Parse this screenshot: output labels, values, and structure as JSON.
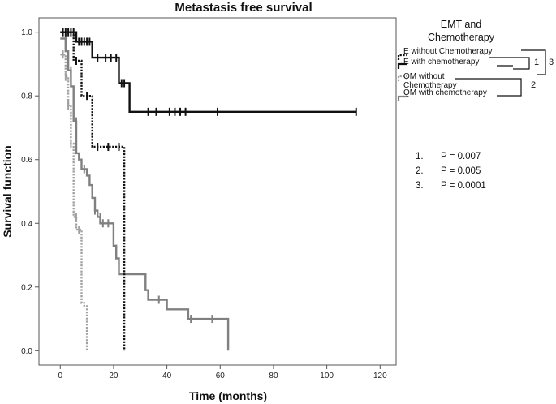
{
  "chart_data": {
    "type": "line",
    "subtype": "kaplan-meier",
    "title": "Metastasis free survival",
    "xlabel": "Time (months)",
    "ylabel": "Survival function",
    "xlim": [
      -8,
      126
    ],
    "ylim": [
      -0.045,
      1.045
    ],
    "xticks": [
      0,
      20,
      40,
      60,
      80,
      100,
      120
    ],
    "yticks": [
      0.0,
      0.2,
      0.4,
      0.6,
      0.8,
      1.0
    ],
    "ytick_labels": [
      "0.0",
      "0.2",
      "0.4",
      "0.6",
      "0.8",
      "1.0"
    ],
    "grid": false,
    "legend": {
      "title": "EMT and Chemotherapy",
      "title_lines": [
        "EMT and",
        "Chemotherapy"
      ],
      "placement": "outside-right"
    },
    "series": [
      {
        "name": "E without Chemotherapy",
        "label_lines": [
          "E without Chemotherapy"
        ],
        "color": "#111111",
        "style": "dotted",
        "steps": [
          [
            0,
            1.0
          ],
          [
            5,
            1.0
          ],
          [
            5,
            0.91
          ],
          [
            8,
            0.91
          ],
          [
            8,
            0.8
          ],
          [
            12,
            0.8
          ],
          [
            12,
            0.64
          ],
          [
            24,
            0.64
          ],
          [
            24,
            0.0
          ]
        ],
        "censored": [
          [
            2,
            1.0
          ],
          [
            4,
            1.0
          ],
          [
            6,
            0.91
          ],
          [
            10,
            0.8
          ],
          [
            14,
            0.64
          ],
          [
            18,
            0.64
          ],
          [
            22,
            0.64
          ]
        ]
      },
      {
        "name": "E with chemotherapy",
        "label_lines": [
          "E with chemotherapy"
        ],
        "color": "#111111",
        "style": "solid",
        "steps": [
          [
            0,
            1.0
          ],
          [
            6,
            1.0
          ],
          [
            6,
            0.97
          ],
          [
            12,
            0.97
          ],
          [
            12,
            0.92
          ],
          [
            22,
            0.92
          ],
          [
            22,
            0.84
          ],
          [
            26,
            0.84
          ],
          [
            26,
            0.75
          ],
          [
            111,
            0.75
          ]
        ],
        "censored": [
          [
            1,
            1.0
          ],
          [
            3,
            1.0
          ],
          [
            5,
            1.0
          ],
          [
            7,
            0.97
          ],
          [
            8,
            0.97
          ],
          [
            9,
            0.97
          ],
          [
            10,
            0.97
          ],
          [
            11,
            0.97
          ],
          [
            14,
            0.92
          ],
          [
            17,
            0.92
          ],
          [
            19,
            0.92
          ],
          [
            21,
            0.92
          ],
          [
            23,
            0.84
          ],
          [
            24,
            0.84
          ],
          [
            33,
            0.75
          ],
          [
            36,
            0.75
          ],
          [
            41,
            0.75
          ],
          [
            43,
            0.75
          ],
          [
            45,
            0.75
          ],
          [
            47,
            0.75
          ],
          [
            59,
            0.75
          ],
          [
            111,
            0.75
          ]
        ]
      },
      {
        "name": "QM without Chemotherapy",
        "label_lines": [
          "QM without",
          "Chemotherapy"
        ],
        "color": "#a0a0a0",
        "style": "dotted",
        "steps": [
          [
            0,
            0.93
          ],
          [
            2,
            0.93
          ],
          [
            2,
            0.86
          ],
          [
            3,
            0.86
          ],
          [
            3,
            0.77
          ],
          [
            4,
            0.77
          ],
          [
            4,
            0.65
          ],
          [
            5,
            0.65
          ],
          [
            5,
            0.42
          ],
          [
            6,
            0.42
          ],
          [
            6,
            0.38
          ],
          [
            8,
            0.38
          ],
          [
            8,
            0.15
          ],
          [
            9,
            0.15
          ],
          [
            9,
            0.14
          ],
          [
            10,
            0.14
          ],
          [
            10,
            0.0
          ]
        ],
        "censored": [
          [
            1,
            0.93
          ],
          [
            2,
            0.86
          ],
          [
            3,
            0.77
          ],
          [
            4,
            0.65
          ],
          [
            6,
            0.42
          ],
          [
            7,
            0.38
          ]
        ]
      },
      {
        "name": "QM with chemotherapy",
        "label_lines": [
          "QM with chemotherapy"
        ],
        "color": "#808080",
        "style": "solid",
        "steps": [
          [
            0,
            0.98
          ],
          [
            2,
            0.98
          ],
          [
            2,
            0.94
          ],
          [
            3,
            0.94
          ],
          [
            3,
            0.88
          ],
          [
            4,
            0.88
          ],
          [
            4,
            0.83
          ],
          [
            5,
            0.83
          ],
          [
            5,
            0.72
          ],
          [
            6,
            0.72
          ],
          [
            6,
            0.62
          ],
          [
            7,
            0.62
          ],
          [
            7,
            0.6
          ],
          [
            8,
            0.6
          ],
          [
            8,
            0.57
          ],
          [
            10,
            0.57
          ],
          [
            10,
            0.55
          ],
          [
            11,
            0.55
          ],
          [
            11,
            0.52
          ],
          [
            12,
            0.52
          ],
          [
            12,
            0.48
          ],
          [
            13,
            0.48
          ],
          [
            13,
            0.44
          ],
          [
            14,
            0.44
          ],
          [
            14,
            0.42
          ],
          [
            15,
            0.42
          ],
          [
            15,
            0.4
          ],
          [
            20,
            0.4
          ],
          [
            20,
            0.33
          ],
          [
            21,
            0.33
          ],
          [
            21,
            0.29
          ],
          [
            22,
            0.29
          ],
          [
            22,
            0.24
          ],
          [
            32,
            0.24
          ],
          [
            32,
            0.19
          ],
          [
            33,
            0.19
          ],
          [
            33,
            0.16
          ],
          [
            40,
            0.16
          ],
          [
            40,
            0.13
          ],
          [
            48,
            0.13
          ],
          [
            48,
            0.1
          ],
          [
            63,
            0.1
          ],
          [
            63,
            0.0
          ]
        ],
        "censored": [
          [
            2,
            0.98
          ],
          [
            4,
            0.88
          ],
          [
            6,
            0.72
          ],
          [
            9,
            0.57
          ],
          [
            13,
            0.44
          ],
          [
            15,
            0.42
          ],
          [
            16,
            0.4
          ],
          [
            18,
            0.4
          ],
          [
            37,
            0.16
          ],
          [
            49,
            0.1
          ],
          [
            57,
            0.1
          ]
        ]
      }
    ],
    "comparisons": [
      {
        "label": "1",
        "between": [
          "E without Chemotherapy",
          "E with chemotherapy"
        ]
      },
      {
        "label": "2",
        "between": [
          "QM without Chemotherapy",
          "QM with chemotherapy"
        ]
      },
      {
        "label": "3",
        "between": [
          "E without Chemotherapy",
          "QM with chemotherapy"
        ]
      }
    ],
    "p_values": [
      {
        "label": "1.",
        "text": "P = 0.007"
      },
      {
        "label": "2.",
        "text": "P = 0.005"
      },
      {
        "label": "3.",
        "text": "P = 0.0001"
      }
    ]
  }
}
